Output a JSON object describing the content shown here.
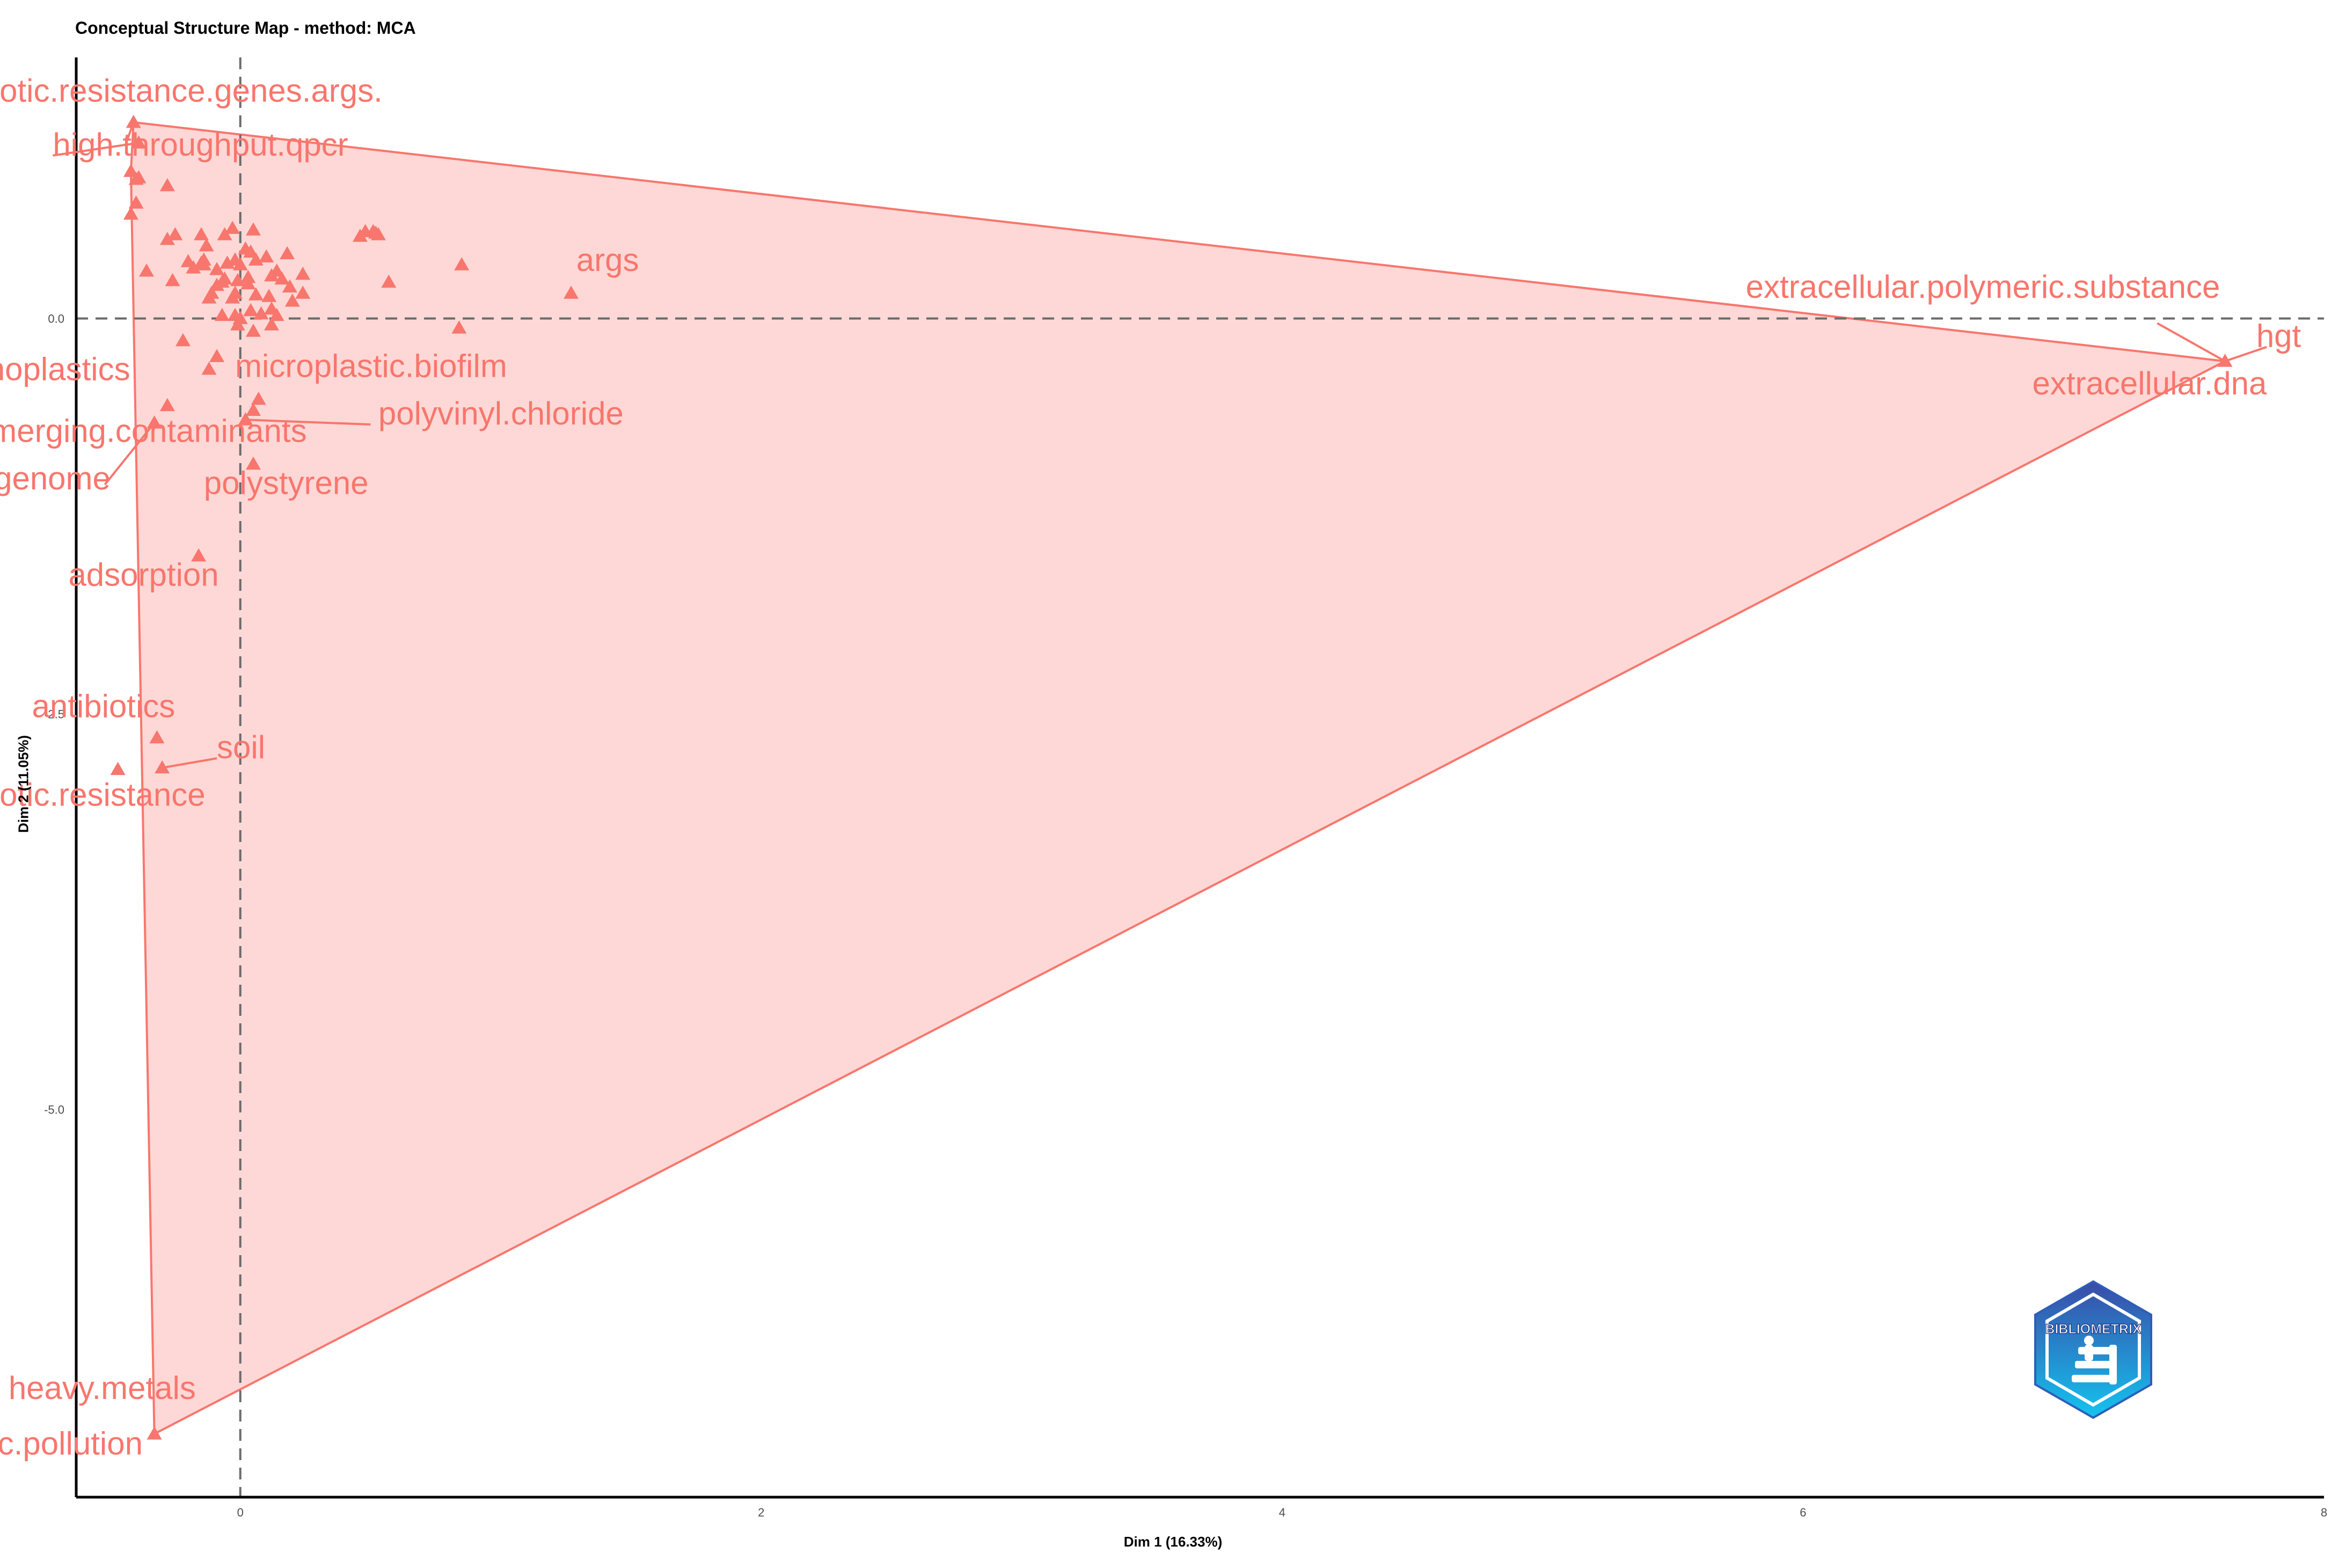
{
  "chart_data": {
    "type": "scatter",
    "title": "Conceptual Structure Map - method: MCA",
    "xlabel": "Dim 1 (16.33%)",
    "ylabel": "Dim 2 (11.05%)",
    "xlim": [
      -0.63,
      8.0
    ],
    "ylim": [
      -7.45,
      1.65
    ],
    "x_ticks": [
      0,
      2,
      4,
      6,
      8
    ],
    "x_tick_labels": [
      "0",
      "2",
      "4",
      "6",
      "8"
    ],
    "y_ticks": [
      0.0,
      -2.5,
      -5.0
    ],
    "y_tick_labels": [
      "0.0",
      "-2.5",
      "-5.0"
    ],
    "reference_lines": {
      "x": 0,
      "y": 0
    },
    "grid": false,
    "cluster_color": "#F8766D",
    "cluster_fill": "#FDD8D6",
    "hull": [
      [
        -0.41,
        1.24
      ],
      [
        7.62,
        -0.27
      ],
      [
        -0.33,
        -7.05
      ],
      [
        -0.42,
        0.93
      ]
    ],
    "points": [
      [
        -0.41,
        1.24
      ],
      [
        -0.39,
        1.11
      ],
      [
        -0.42,
        0.93
      ],
      [
        -0.39,
        0.89
      ],
      [
        -0.4,
        0.88
      ],
      [
        -0.28,
        0.84
      ],
      [
        -0.42,
        0.66
      ],
      [
        -0.36,
        0.3
      ],
      [
        -0.28,
        0.5
      ],
      [
        -0.25,
        0.53
      ],
      [
        -0.2,
        0.36
      ],
      [
        -0.15,
        0.53
      ],
      [
        -0.26,
        0.24
      ],
      [
        -0.14,
        0.34
      ],
      [
        -0.18,
        0.32
      ],
      [
        -0.14,
        0.37
      ],
      [
        -0.13,
        0.46
      ],
      [
        -0.09,
        0.31
      ],
      [
        -0.07,
        0.23
      ],
      [
        -0.09,
        0.21
      ],
      [
        -0.11,
        0.16
      ],
      [
        -0.06,
        0.25
      ],
      [
        -0.12,
        0.13
      ],
      [
        -0.05,
        0.35
      ],
      [
        -0.03,
        0.57
      ],
      [
        -0.02,
        0.37
      ],
      [
        0.0,
        0.34
      ],
      [
        -0.02,
        0.16
      ],
      [
        -0.01,
        0.24
      ],
      [
        0.02,
        0.44
      ],
      [
        0.04,
        0.42
      ],
      [
        0.05,
        0.56
      ],
      [
        0.06,
        0.37
      ],
      [
        0.03,
        0.26
      ],
      [
        0.03,
        0.22
      ],
      [
        -0.03,
        0.13
      ],
      [
        0.04,
        0.05
      ],
      [
        0.0,
        0.0
      ],
      [
        -0.02,
        0.02
      ],
      [
        0.06,
        0.15
      ],
      [
        0.08,
        0.03
      ],
      [
        0.1,
        0.39
      ],
      [
        0.12,
        0.27
      ],
      [
        0.14,
        0.3
      ],
      [
        0.11,
        0.14
      ],
      [
        0.16,
        0.25
      ],
      [
        0.19,
        0.2
      ],
      [
        0.2,
        0.11
      ],
      [
        0.24,
        0.16
      ],
      [
        0.12,
        0.06
      ],
      [
        0.14,
        0.02
      ],
      [
        0.12,
        -0.04
      ],
      [
        0.05,
        -0.08
      ],
      [
        0.46,
        0.52
      ],
      [
        0.48,
        0.55
      ],
      [
        0.51,
        0.55
      ],
      [
        0.52,
        0.54
      ],
      [
        0.53,
        0.53
      ],
      [
        0.57,
        0.23
      ],
      [
        0.85,
        0.34
      ],
      [
        0.84,
        -0.06
      ],
      [
        1.27,
        0.16
      ],
      [
        -0.4,
        0.73
      ],
      [
        -0.15,
        0.35
      ],
      [
        -0.06,
        0.53
      ],
      [
        -0.28,
        -0.55
      ],
      [
        -0.33,
        -0.66
      ],
      [
        -0.22,
        -0.14
      ],
      [
        -0.12,
        -0.32
      ],
      [
        -0.07,
        0.02
      ],
      [
        -0.09,
        -0.24
      ],
      [
        0.05,
        -0.58
      ],
      [
        0.02,
        -0.64
      ],
      [
        0.07,
        -0.51
      ],
      [
        0.05,
        -0.92
      ],
      [
        -0.16,
        -1.5
      ],
      [
        -0.32,
        -2.65
      ],
      [
        -0.47,
        -2.85
      ],
      [
        -0.3,
        -2.84
      ],
      [
        -0.33,
        -7.05
      ],
      [
        7.62,
        -0.27
      ],
      [
        -0.01,
        -0.04
      ],
      [
        0.24,
        0.28
      ],
      [
        0.18,
        0.41
      ]
    ],
    "labels": [
      {
        "text": "antibiotic.resistance.genes.args.",
        "x": -1.22,
        "y": 1.37,
        "anchor": "start"
      },
      {
        "text": "high.throughput.qpcr",
        "x": -0.72,
        "y": 1.03,
        "anchor": "start"
      },
      {
        "text": "args",
        "x": 1.29,
        "y": 0.3,
        "anchor": "start"
      },
      {
        "text": "extracellular.polymeric.substance",
        "x": 5.78,
        "y": 0.13,
        "anchor": "start"
      },
      {
        "text": "hgt",
        "x": 7.74,
        "y": -0.18,
        "anchor": "start"
      },
      {
        "text": "extracellular.dna",
        "x": 6.88,
        "y": -0.48,
        "anchor": "start"
      },
      {
        "text": "nanoplastics",
        "x": -1.11,
        "y": -0.39,
        "anchor": "start"
      },
      {
        "text": "microplastic.biofilm",
        "x": -0.02,
        "y": -0.37,
        "anchor": "start"
      },
      {
        "text": "polyvinyl.chloride",
        "x": 0.53,
        "y": -0.67,
        "anchor": "start"
      },
      {
        "text": "emerging.contaminants",
        "x": -1.03,
        "y": -0.78,
        "anchor": "start"
      },
      {
        "text": "metagenome",
        "x": -1.22,
        "y": -1.08,
        "anchor": "start"
      },
      {
        "text": "polystyrene",
        "x": -0.14,
        "y": -1.11,
        "anchor": "start"
      },
      {
        "text": "adsorption",
        "x": -0.66,
        "y": -1.69,
        "anchor": "start"
      },
      {
        "text": "antibiotics",
        "x": -0.8,
        "y": -2.52,
        "anchor": "start"
      },
      {
        "text": "soil",
        "x": -0.09,
        "y": -2.78,
        "anchor": "start"
      },
      {
        "text": "antibiotic.resistance",
        "x": -1.22,
        "y": -3.08,
        "anchor": "start"
      },
      {
        "text": "heavy.metals",
        "x": -0.89,
        "y": -6.83,
        "anchor": "start"
      },
      {
        "text": "plastic.pollution",
        "x": -1.22,
        "y": -7.18,
        "anchor": "start"
      }
    ],
    "leader_lines": [
      [
        [
          -0.41,
          1.24
        ],
        [
          -0.44,
          1.1
        ]
      ],
      [
        [
          -0.39,
          1.11
        ],
        [
          -0.72,
          1.03
        ]
      ],
      [
        [
          7.62,
          -0.27
        ],
        [
          7.36,
          -0.03
        ]
      ],
      [
        [
          7.62,
          -0.27
        ],
        [
          7.78,
          -0.18
        ]
      ],
      [
        [
          -0.33,
          -0.66
        ],
        [
          -0.52,
          -1.05
        ]
      ],
      [
        [
          0.02,
          -0.64
        ],
        [
          0.5,
          -0.67
        ]
      ],
      [
        [
          -0.3,
          -2.84
        ],
        [
          -0.09,
          -2.78
        ]
      ]
    ]
  },
  "logo": {
    "text": "BIBLIOMETRIX",
    "icon": "bibliometrix-hexagon-logo",
    "color_top": "#3A4BA8",
    "color_bottom": "#13C4EF"
  }
}
